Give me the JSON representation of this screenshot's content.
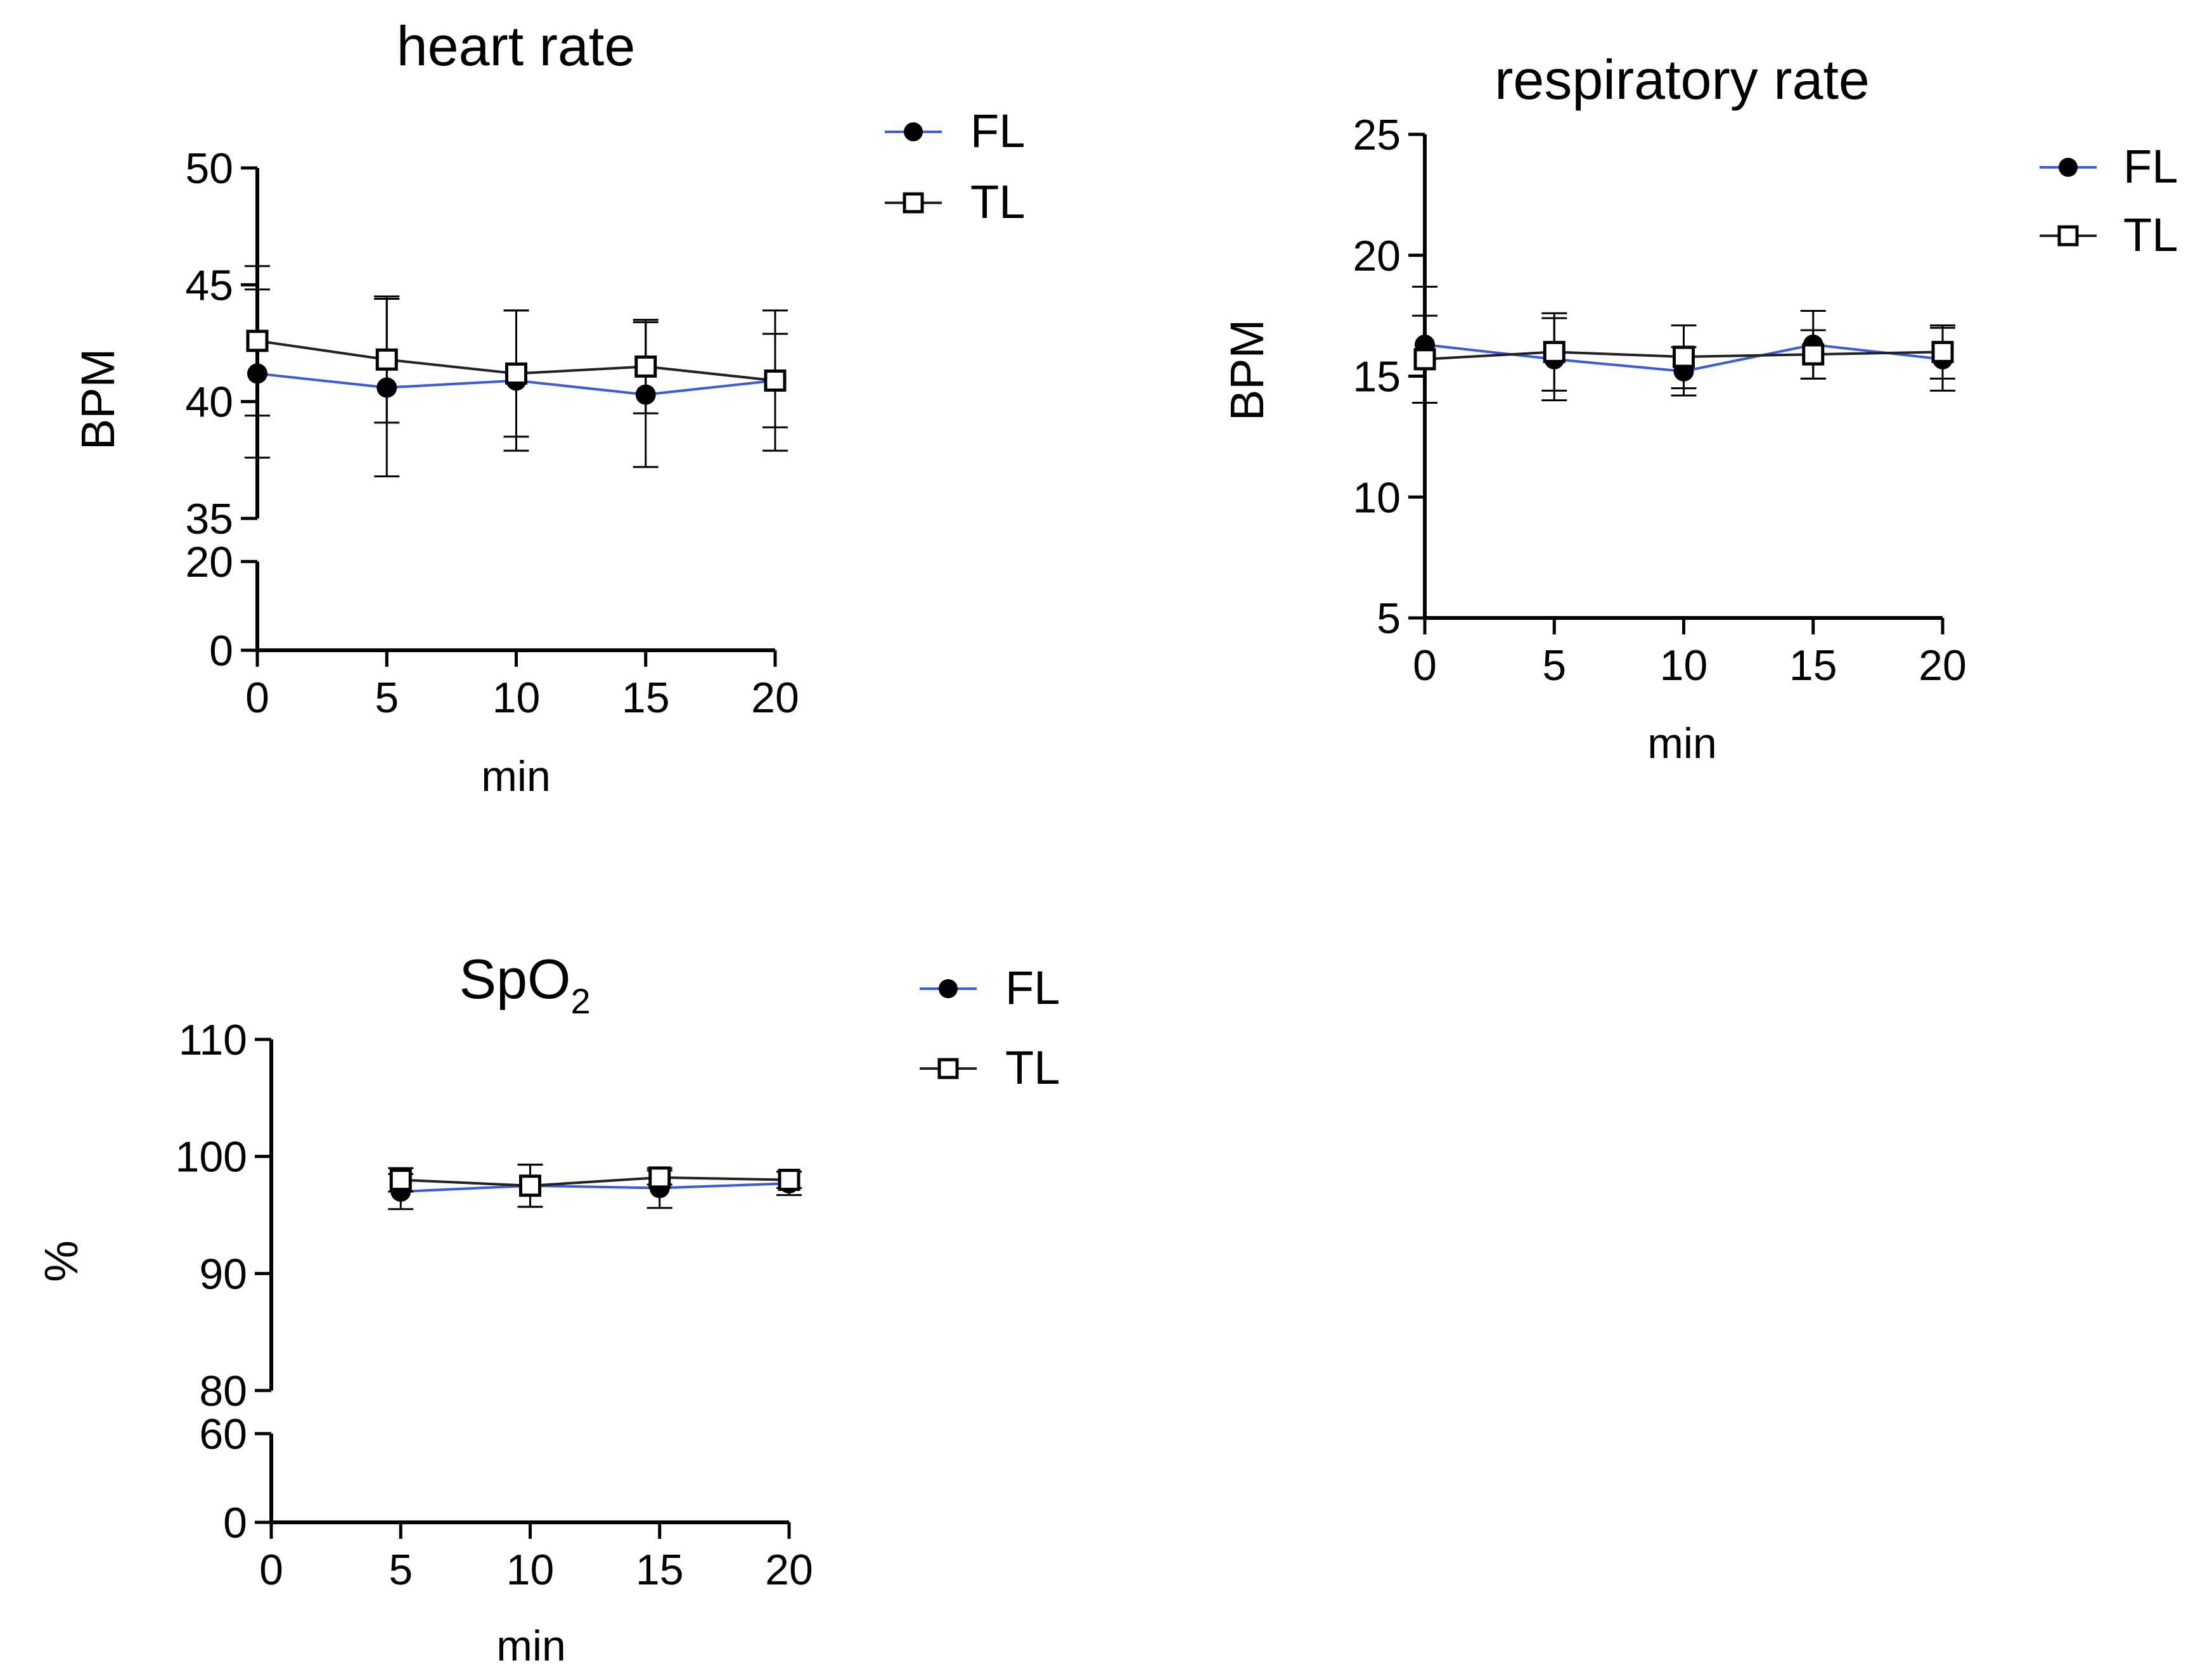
{
  "colors": {
    "FL": "#3b5bdb",
    "TL": "#222222",
    "axis": "#000000"
  },
  "chart_data": [
    {
      "type": "line",
      "title": "heart rate",
      "xlabel": "min",
      "ylabel": "BPM",
      "x": [
        0,
        5,
        10,
        15,
        20
      ],
      "xticks": [
        "0",
        "5",
        "10",
        "15",
        "20"
      ],
      "y_segments": [
        {
          "range": [
            0,
            20
          ],
          "ticks": [
            0,
            20
          ]
        },
        {
          "range": [
            35,
            50
          ],
          "ticks": [
            35,
            40,
            45,
            50
          ]
        }
      ],
      "legend": {
        "placement": "top-right",
        "entries": [
          "FL",
          "TL"
        ]
      },
      "series": [
        {
          "name": "FL",
          "marker": "circle-filled",
          "values": [
            41.2,
            40.6,
            40.9,
            40.3,
            40.9
          ],
          "err": [
            3.6,
            3.8,
            3.0,
            3.1,
            2.0
          ]
        },
        {
          "name": "TL",
          "marker": "square-open",
          "values": [
            42.6,
            41.8,
            41.2,
            41.5,
            40.9
          ],
          "err": [
            3.2,
            2.7,
            2.7,
            2.0,
            3.0
          ]
        }
      ]
    },
    {
      "type": "line",
      "title": "respiratory rate",
      "xlabel": "min",
      "ylabel": "BPM",
      "x": [
        0,
        5,
        10,
        15,
        20
      ],
      "xticks": [
        "0",
        "5",
        "10",
        "15",
        "20"
      ],
      "y_segments": [
        {
          "range": [
            5,
            25
          ],
          "ticks": [
            5,
            10,
            15,
            20,
            25
          ]
        }
      ],
      "legend": {
        "placement": "top-right",
        "entries": [
          "FL",
          "TL"
        ]
      },
      "series": [
        {
          "name": "FL",
          "marker": "circle-filled",
          "values": [
            16.3,
            15.7,
            15.2,
            16.3,
            15.7
          ],
          "err": [
            2.4,
            1.7,
            1.0,
            1.4,
            1.3
          ]
        },
        {
          "name": "TL",
          "marker": "square-open",
          "values": [
            15.7,
            16.0,
            15.8,
            15.9,
            16.0
          ],
          "err": [
            1.8,
            1.6,
            1.3,
            1.0,
            1.1
          ]
        }
      ]
    },
    {
      "type": "line",
      "title": "SpO",
      "title_subscript": "2",
      "xlabel": "min",
      "ylabel": "%",
      "x": [
        5,
        10,
        15,
        20
      ],
      "xticks": [
        "0",
        "5",
        "10",
        "15",
        "20"
      ],
      "xtick_values": [
        0,
        5,
        10,
        15,
        20
      ],
      "y_segments": [
        {
          "range": [
            0,
            60
          ],
          "ticks": [
            0,
            60
          ]
        },
        {
          "range": [
            80,
            110
          ],
          "ticks": [
            80,
            90,
            100,
            110
          ]
        }
      ],
      "legend": {
        "placement": "top-right",
        "entries": [
          "FL",
          "TL"
        ]
      },
      "series": [
        {
          "name": "FL",
          "marker": "circle-filled",
          "values": [
            97.0,
            97.5,
            97.3,
            97.7
          ],
          "err": [
            1.5,
            1.8,
            1.7,
            1.0
          ]
        },
        {
          "name": "TL",
          "marker": "square-open",
          "values": [
            98.0,
            97.5,
            98.2,
            98.0
          ],
          "err": [
            1.0,
            1.8,
            0.6,
            0.7
          ]
        }
      ]
    }
  ]
}
